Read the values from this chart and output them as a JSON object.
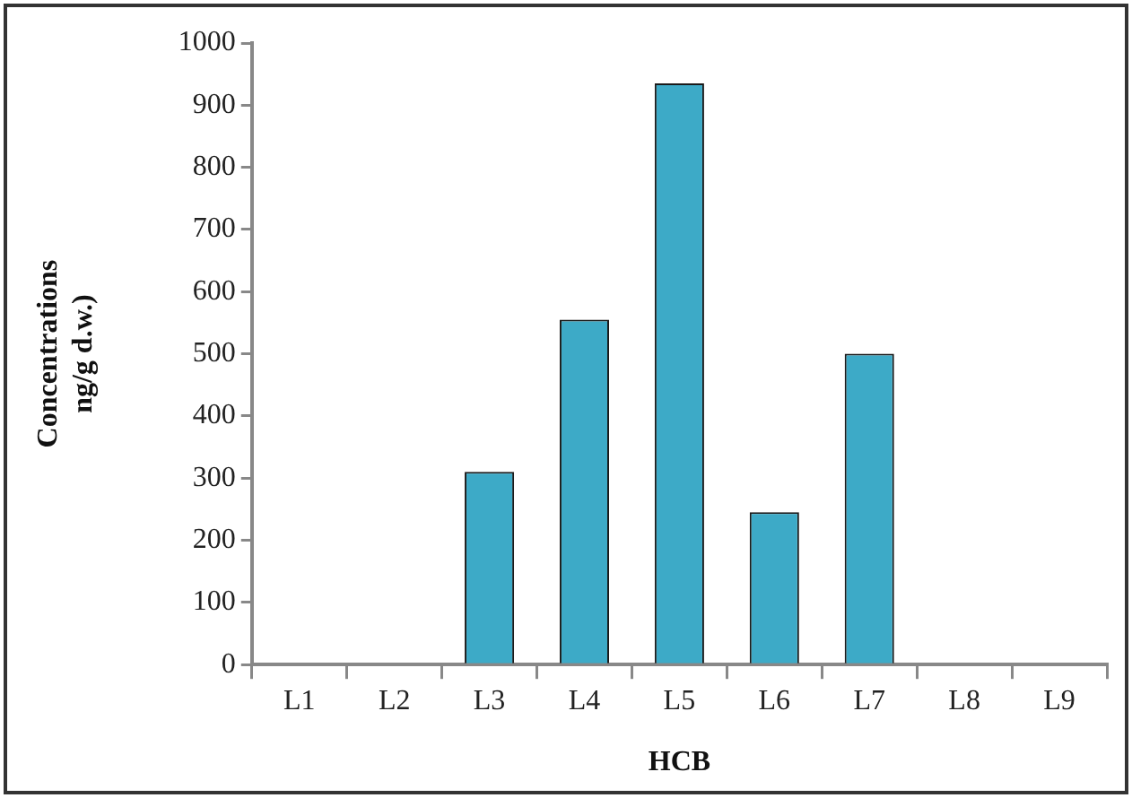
{
  "chart_data": {
    "type": "bar",
    "xlabel": "HCB",
    "ylabel": "Concentrations\nng/g d.w.)",
    "categories": [
      "L1",
      "L2",
      "L3",
      "L4",
      "L5",
      "L6",
      "L7",
      "L8",
      "L9"
    ],
    "values": [
      null,
      null,
      310,
      555,
      935,
      245,
      500,
      null,
      null
    ],
    "color": "#3daac7",
    "ylim": [
      0,
      1000
    ],
    "yticks": [
      0,
      100,
      200,
      300,
      400,
      500,
      600,
      700,
      800,
      900,
      1000
    ],
    "grid": false
  }
}
